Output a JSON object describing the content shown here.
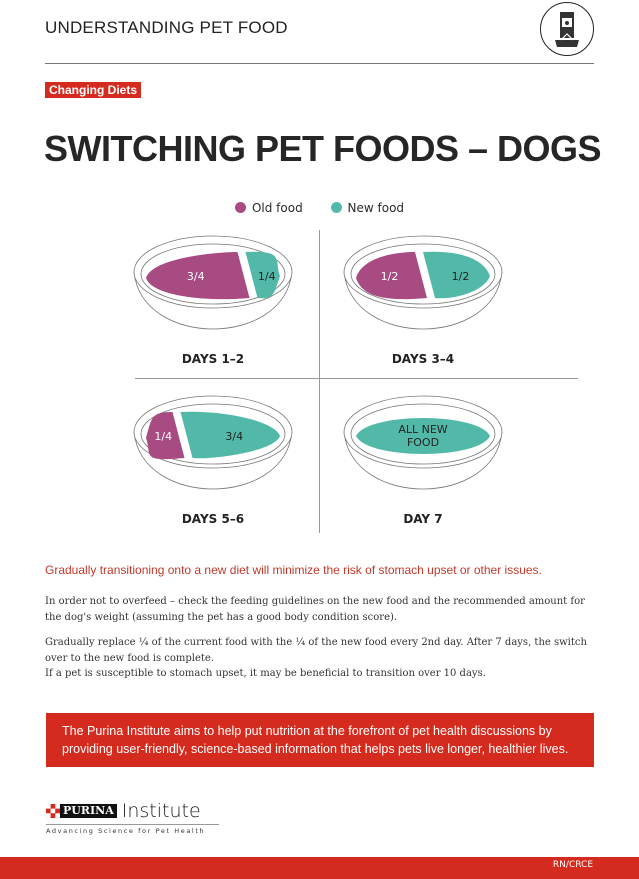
{
  "header": {
    "title": "UNDERSTANDING PET FOOD",
    "icon": "pet-food-bag-icon"
  },
  "badge": "Changing Diets",
  "title": "SWITCHING PET FOODS – DOGS",
  "legend": [
    {
      "label": "Old food",
      "color": "#a84b82"
    },
    {
      "label": "New food",
      "color": "#52b9a9"
    }
  ],
  "bowls": [
    {
      "day": "DAYS 1–2",
      "old": "3/4",
      "new": "1/4",
      "old_fraction": 0.75
    },
    {
      "day": "DAYS 3–4",
      "old": "1/2",
      "new": "1/2",
      "old_fraction": 0.5
    },
    {
      "day": "DAYS 5–6",
      "old": "1/4",
      "new": "3/4",
      "old_fraction": 0.25
    },
    {
      "day": "DAY 7",
      "all": [
        "ALL NEW",
        "FOOD"
      ],
      "old_fraction": 0
    }
  ],
  "lead": "Gradually transitioning onto a new diet will minimize the risk of stomach upset or other issues.",
  "paragraphs": [
    "In order not to overfeed – check the feeding guidelines on the new food and the recommended amount for the dog's weight (assuming the pet has a good body condition score).",
    "Gradually replace ¼ of the current food with the ¼ of the new food every 2nd day. After 7 days, the switch over to the new food is complete.",
    "If a pet is susceptible to stomach upset, it may be beneficial to transition over 10 days."
  ],
  "callout": "The Purina Institute aims to help put nutrition at the forefront of pet health discussions by providing user-friendly, science-based information that helps pets live longer, healthier lives.",
  "logo": {
    "brand": "PURINA",
    "name": "Institute",
    "tagline": "Advancing Science for Pet Health"
  },
  "footer_code": "RN/CRCE",
  "colors": {
    "accent": "#d52b1e"
  }
}
